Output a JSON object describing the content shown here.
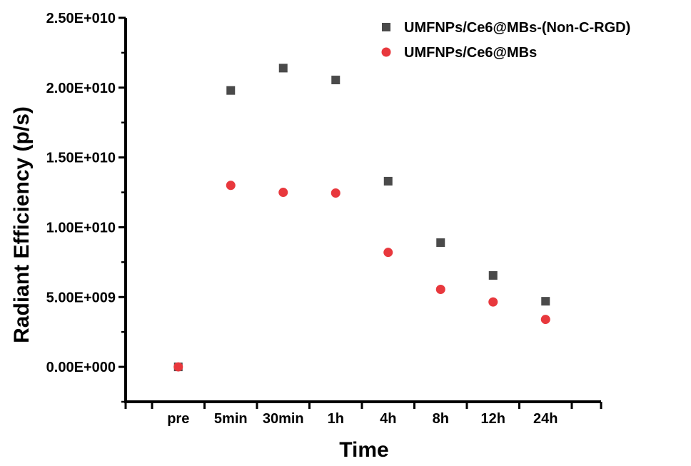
{
  "chart_data": {
    "type": "scatter",
    "xlabel": "Time",
    "ylabel": "Radiant Efficiency (p/s)",
    "categories": [
      "pre",
      "5min",
      "30min",
      "1h",
      "4h",
      "8h",
      "12h",
      "24h"
    ],
    "ylim": [
      -2500000000,
      25000000000
    ],
    "yticks": [
      0,
      5000000000,
      10000000000,
      15000000000,
      20000000000,
      25000000000
    ],
    "ytick_labels": [
      "0.00E+000",
      "5.00E+009",
      "1.00E+010",
      "1.50E+010",
      "2.00E+010",
      "2.50E+010"
    ],
    "grid": false,
    "legend_position": "top-right",
    "series": [
      {
        "name": "UMFNPs/Ce6@MBs-(Non-C-RGD)",
        "marker": "square",
        "color": "#4a4a4a",
        "values": [
          0,
          19800000000,
          21400000000,
          20550000000,
          13300000000,
          8900000000,
          6550000000,
          4700000000
        ]
      },
      {
        "name": "UMFNPs/Ce6@MBs",
        "marker": "circle",
        "color": "#e8383d",
        "values": [
          0,
          13000000000,
          12500000000,
          12450000000,
          8200000000,
          5550000000,
          4650000000,
          3400000000
        ]
      }
    ]
  }
}
